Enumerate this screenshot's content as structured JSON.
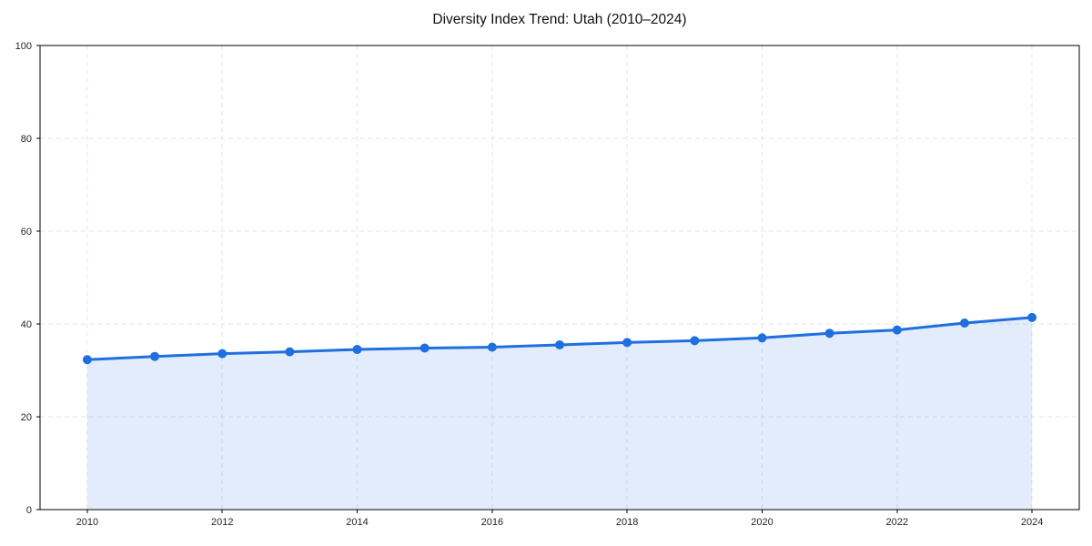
{
  "title": "Diversity Index Trend: Utah (2010–2024)",
  "chart_data": {
    "type": "line",
    "title": "Diversity Index Trend: Utah (2010–2024)",
    "x": [
      2010,
      2011,
      2012,
      2013,
      2014,
      2015,
      2016,
      2017,
      2018,
      2019,
      2020,
      2021,
      2022,
      2023,
      2024
    ],
    "series": [
      {
        "name": "Diversity Index",
        "values": [
          32.3,
          33.0,
          33.6,
          34.0,
          34.5,
          34.8,
          35.0,
          35.5,
          36.0,
          36.4,
          37.0,
          38.0,
          38.7,
          40.2,
          41.4
        ]
      }
    ],
    "xticks": [
      2010,
      2012,
      2014,
      2016,
      2018,
      2020,
      2022,
      2024
    ],
    "yticks": [
      0,
      20,
      40,
      60,
      80,
      100
    ],
    "xlim": [
      2009.3,
      2024.7
    ],
    "ylim": [
      0,
      100
    ],
    "xlabel": "",
    "ylabel": "",
    "grid": true,
    "grid_style": "dashed",
    "legend": false,
    "area_fill": true,
    "marker_shape": "circle",
    "colors": {
      "line": "#1f6fe0",
      "marker": "#1f6fe0",
      "fill": "#1f6fe0",
      "fill_opacity": "0.13",
      "grid": "#e4e4e4",
      "spine": "#000000",
      "tick_label": "#262626",
      "title": "#111111",
      "background": "#ffffff"
    }
  }
}
